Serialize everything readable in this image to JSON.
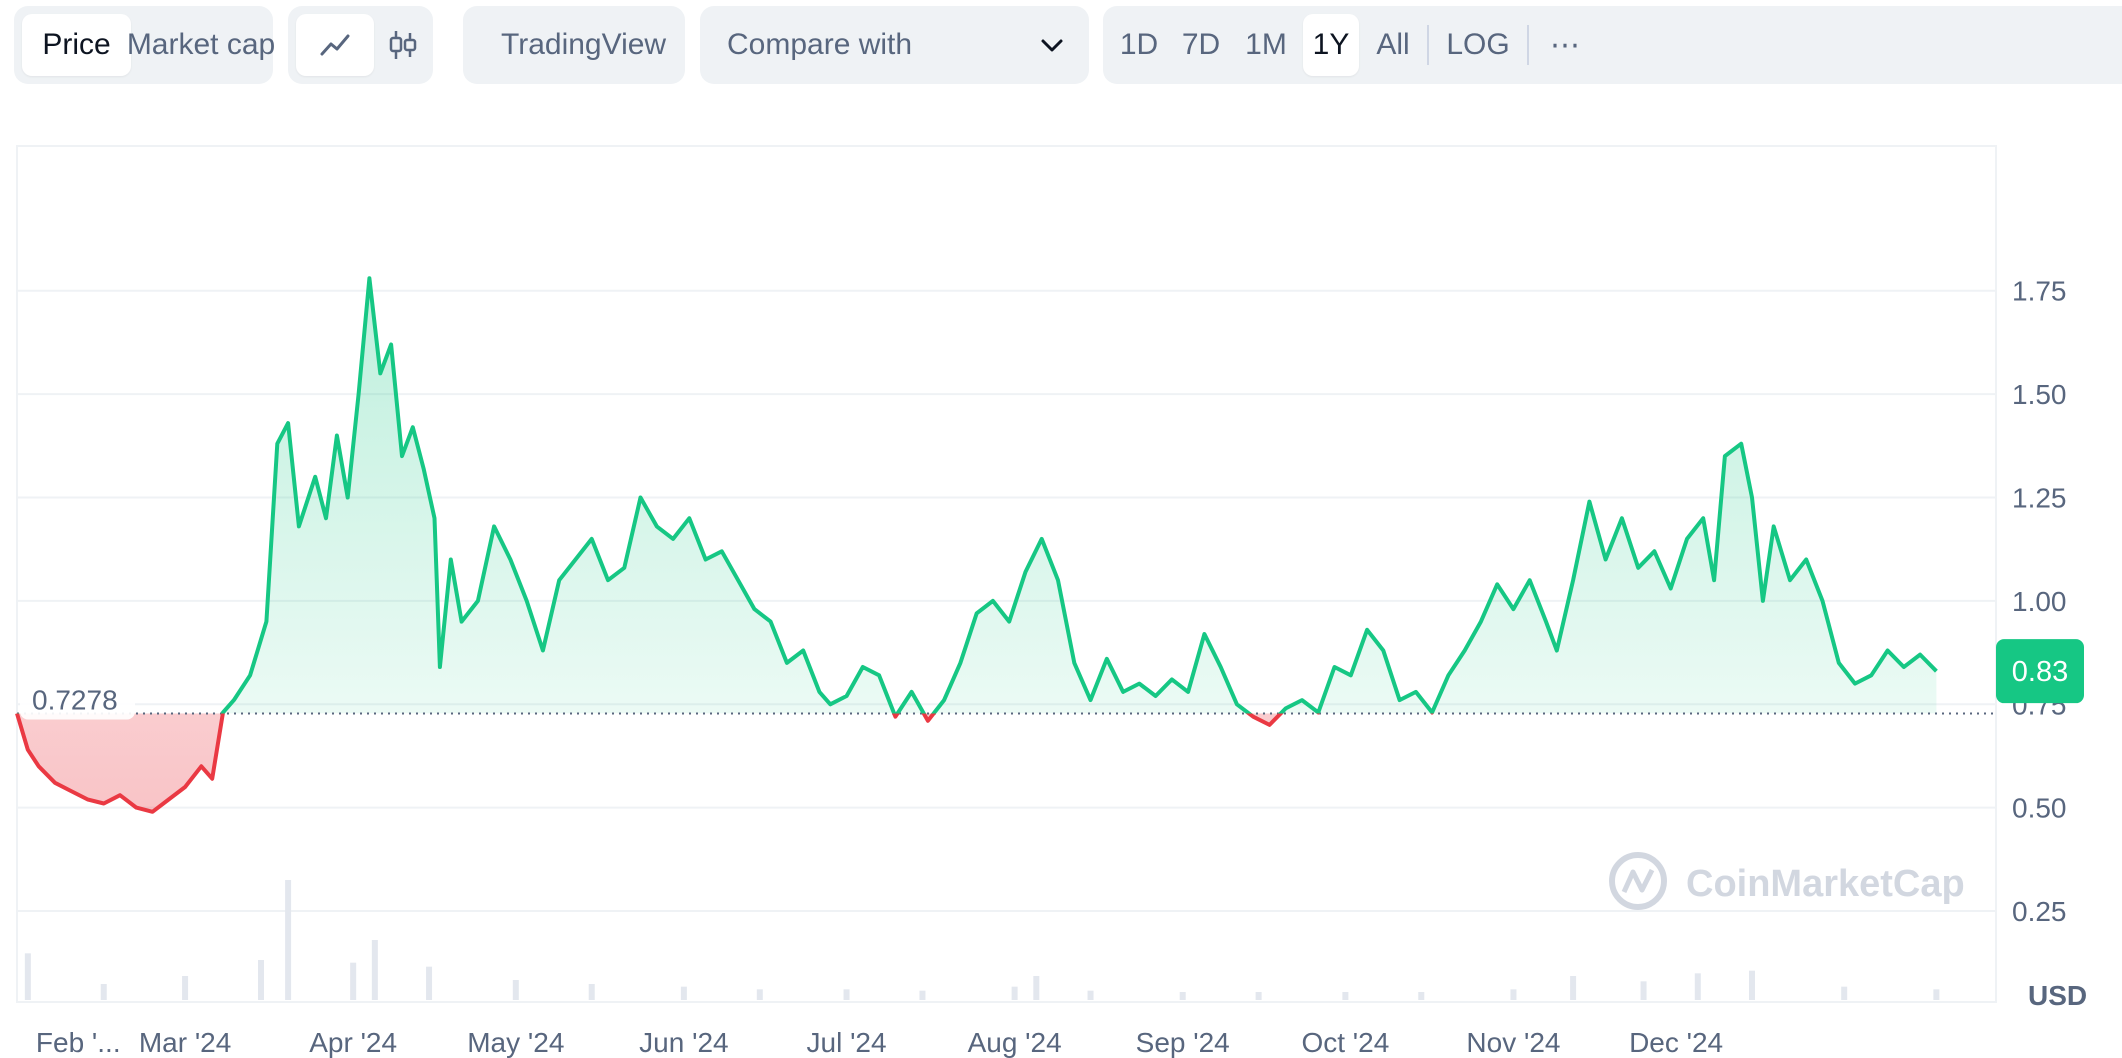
{
  "toolbar": {
    "view_tabs": [
      {
        "label": "Price",
        "active": true
      },
      {
        "label": "Market cap",
        "active": false
      }
    ],
    "chart_type_buttons": [
      {
        "icon": "line-chart-icon",
        "active": true
      },
      {
        "icon": "candlestick-icon",
        "active": false
      }
    ],
    "tradingview_label": "TradingView",
    "compare_placeholder": "Compare with",
    "ranges": [
      {
        "label": "1D",
        "active": false
      },
      {
        "label": "7D",
        "active": false
      },
      {
        "label": "1M",
        "active": false
      },
      {
        "label": "1Y",
        "active": true
      },
      {
        "label": "All",
        "active": false
      }
    ],
    "log_label": "LOG",
    "more_label": "⋯"
  },
  "chart_data": {
    "type": "area",
    "currency_label": "USD",
    "watermark": "CoinMarketCap",
    "baseline_value": 0.7278,
    "baseline_label": "0.7278",
    "current_value": 0.83,
    "current_label": "0.83",
    "y_ticks": [
      {
        "value": 1.75,
        "label": "1.75"
      },
      {
        "value": 1.5,
        "label": "1.50"
      },
      {
        "value": 1.25,
        "label": "1.25"
      },
      {
        "value": 1.0,
        "label": "1.00"
      },
      {
        "value": 0.75,
        "label": "0.75"
      },
      {
        "value": 0.5,
        "label": "0.50"
      },
      {
        "value": 0.25,
        "label": "0.25"
      }
    ],
    "ylim": [
      0.03,
      2.1
    ],
    "x_domain": [
      "2024-01-30",
      "2025-01-29"
    ],
    "x_ticks": [
      {
        "date": "2024-02-02",
        "label": "Feb '..."
      },
      {
        "date": "2024-03-01",
        "label": "Mar '24"
      },
      {
        "date": "2024-04-01",
        "label": "Apr '24"
      },
      {
        "date": "2024-05-01",
        "label": "May '24"
      },
      {
        "date": "2024-06-01",
        "label": "Jun '24"
      },
      {
        "date": "2024-07-01",
        "label": "Jul '24"
      },
      {
        "date": "2024-08-01",
        "label": "Aug '24"
      },
      {
        "date": "2024-09-01",
        "label": "Sep '24"
      },
      {
        "date": "2024-10-01",
        "label": "Oct '24"
      },
      {
        "date": "2024-11-01",
        "label": "Nov '24"
      },
      {
        "date": "2024-12-01",
        "label": "Dec '24"
      }
    ],
    "colors": {
      "up": "#16c784",
      "down": "#ea3943",
      "grid": "#eff2f5",
      "badge": "#16c784"
    },
    "series": [
      {
        "points": [
          [
            "2024-01-30",
            0.7278
          ],
          [
            "2024-02-01",
            0.64
          ],
          [
            "2024-02-03",
            0.6
          ],
          [
            "2024-02-06",
            0.56
          ],
          [
            "2024-02-09",
            0.54
          ],
          [
            "2024-02-12",
            0.52
          ],
          [
            "2024-02-15",
            0.51
          ],
          [
            "2024-02-18",
            0.53
          ],
          [
            "2024-02-21",
            0.5
          ],
          [
            "2024-02-24",
            0.49
          ],
          [
            "2024-02-27",
            0.52
          ],
          [
            "2024-03-01",
            0.55
          ],
          [
            "2024-03-04",
            0.6
          ],
          [
            "2024-03-06",
            0.57
          ],
          [
            "2024-03-08",
            0.73
          ],
          [
            "2024-03-10",
            0.76
          ],
          [
            "2024-03-13",
            0.82
          ],
          [
            "2024-03-16",
            0.95
          ],
          [
            "2024-03-18",
            1.38
          ],
          [
            "2024-03-20",
            1.43
          ],
          [
            "2024-03-22",
            1.18
          ],
          [
            "2024-03-25",
            1.3
          ],
          [
            "2024-03-27",
            1.2
          ],
          [
            "2024-03-29",
            1.4
          ],
          [
            "2024-03-31",
            1.25
          ],
          [
            "2024-04-02",
            1.5
          ],
          [
            "2024-04-04",
            1.78
          ],
          [
            "2024-04-06",
            1.55
          ],
          [
            "2024-04-08",
            1.62
          ],
          [
            "2024-04-10",
            1.35
          ],
          [
            "2024-04-12",
            1.42
          ],
          [
            "2024-04-14",
            1.32
          ],
          [
            "2024-04-16",
            1.2
          ],
          [
            "2024-04-17",
            0.84
          ],
          [
            "2024-04-19",
            1.1
          ],
          [
            "2024-04-21",
            0.95
          ],
          [
            "2024-04-24",
            1.0
          ],
          [
            "2024-04-27",
            1.18
          ],
          [
            "2024-04-30",
            1.1
          ],
          [
            "2024-05-03",
            1.0
          ],
          [
            "2024-05-06",
            0.88
          ],
          [
            "2024-05-09",
            1.05
          ],
          [
            "2024-05-12",
            1.1
          ],
          [
            "2024-05-15",
            1.15
          ],
          [
            "2024-05-18",
            1.05
          ],
          [
            "2024-05-21",
            1.08
          ],
          [
            "2024-05-24",
            1.25
          ],
          [
            "2024-05-27",
            1.18
          ],
          [
            "2024-05-30",
            1.15
          ],
          [
            "2024-06-02",
            1.2
          ],
          [
            "2024-06-05",
            1.1
          ],
          [
            "2024-06-08",
            1.12
          ],
          [
            "2024-06-11",
            1.05
          ],
          [
            "2024-06-14",
            0.98
          ],
          [
            "2024-06-17",
            0.95
          ],
          [
            "2024-06-20",
            0.85
          ],
          [
            "2024-06-23",
            0.88
          ],
          [
            "2024-06-26",
            0.78
          ],
          [
            "2024-06-28",
            0.75
          ],
          [
            "2024-07-01",
            0.77
          ],
          [
            "2024-07-04",
            0.84
          ],
          [
            "2024-07-07",
            0.82
          ],
          [
            "2024-07-10",
            0.72
          ],
          [
            "2024-07-13",
            0.78
          ],
          [
            "2024-07-16",
            0.71
          ],
          [
            "2024-07-19",
            0.76
          ],
          [
            "2024-07-22",
            0.85
          ],
          [
            "2024-07-25",
            0.97
          ],
          [
            "2024-07-28",
            1.0
          ],
          [
            "2024-07-31",
            0.95
          ],
          [
            "2024-08-03",
            1.07
          ],
          [
            "2024-08-06",
            1.15
          ],
          [
            "2024-08-09",
            1.05
          ],
          [
            "2024-08-12",
            0.85
          ],
          [
            "2024-08-15",
            0.76
          ],
          [
            "2024-08-18",
            0.86
          ],
          [
            "2024-08-21",
            0.78
          ],
          [
            "2024-08-24",
            0.8
          ],
          [
            "2024-08-27",
            0.77
          ],
          [
            "2024-08-30",
            0.81
          ],
          [
            "2024-09-02",
            0.78
          ],
          [
            "2024-09-05",
            0.92
          ],
          [
            "2024-09-08",
            0.84
          ],
          [
            "2024-09-11",
            0.75
          ],
          [
            "2024-09-14",
            0.72
          ],
          [
            "2024-09-17",
            0.7
          ],
          [
            "2024-09-20",
            0.74
          ],
          [
            "2024-09-23",
            0.76
          ],
          [
            "2024-09-26",
            0.73
          ],
          [
            "2024-09-29",
            0.84
          ],
          [
            "2024-10-02",
            0.82
          ],
          [
            "2024-10-05",
            0.93
          ],
          [
            "2024-10-08",
            0.88
          ],
          [
            "2024-10-11",
            0.76
          ],
          [
            "2024-10-14",
            0.78
          ],
          [
            "2024-10-17",
            0.73
          ],
          [
            "2024-10-20",
            0.82
          ],
          [
            "2024-10-23",
            0.88
          ],
          [
            "2024-10-26",
            0.95
          ],
          [
            "2024-10-29",
            1.04
          ],
          [
            "2024-11-01",
            0.98
          ],
          [
            "2024-11-04",
            1.05
          ],
          [
            "2024-11-07",
            0.95
          ],
          [
            "2024-11-09",
            0.88
          ],
          [
            "2024-11-12",
            1.05
          ],
          [
            "2024-11-15",
            1.24
          ],
          [
            "2024-11-18",
            1.1
          ],
          [
            "2024-11-21",
            1.2
          ],
          [
            "2024-11-24",
            1.08
          ],
          [
            "2024-11-27",
            1.12
          ],
          [
            "2024-11-30",
            1.03
          ],
          [
            "2024-12-03",
            1.15
          ],
          [
            "2024-12-06",
            1.2
          ],
          [
            "2024-12-08",
            1.05
          ],
          [
            "2024-12-10",
            1.35
          ],
          [
            "2024-12-13",
            1.38
          ],
          [
            "2024-12-15",
            1.25
          ],
          [
            "2024-12-17",
            1.0
          ],
          [
            "2024-12-19",
            1.18
          ],
          [
            "2024-12-22",
            1.05
          ],
          [
            "2024-12-25",
            1.1
          ],
          [
            "2024-12-28",
            1.0
          ],
          [
            "2024-12-31",
            0.85
          ],
          [
            "2025-01-03",
            0.8
          ],
          [
            "2025-01-06",
            0.82
          ],
          [
            "2025-01-09",
            0.88
          ],
          [
            "2025-01-12",
            0.84
          ],
          [
            "2025-01-15",
            0.87
          ],
          [
            "2025-01-18",
            0.83
          ]
        ]
      }
    ],
    "volume": {
      "dates": [
        "2024-02-01",
        "2024-02-15",
        "2024-03-01",
        "2024-03-15",
        "2024-03-20",
        "2024-04-01",
        "2024-04-05",
        "2024-04-15",
        "2024-05-01",
        "2024-05-15",
        "2024-06-01",
        "2024-06-15",
        "2024-07-01",
        "2024-07-15",
        "2024-08-01",
        "2024-08-05",
        "2024-08-15",
        "2024-09-01",
        "2024-09-15",
        "2024-10-01",
        "2024-10-15",
        "2024-11-01",
        "2024-11-12",
        "2024-11-25",
        "2024-12-05",
        "2024-12-15",
        "2025-01-01",
        "2025-01-18"
      ],
      "values": [
        0.35,
        0.12,
        0.18,
        0.3,
        0.9,
        0.28,
        0.45,
        0.25,
        0.15,
        0.12,
        0.1,
        0.08,
        0.08,
        0.07,
        0.1,
        0.18,
        0.07,
        0.06,
        0.06,
        0.06,
        0.06,
        0.08,
        0.18,
        0.14,
        0.2,
        0.22,
        0.1,
        0.08
      ]
    }
  }
}
